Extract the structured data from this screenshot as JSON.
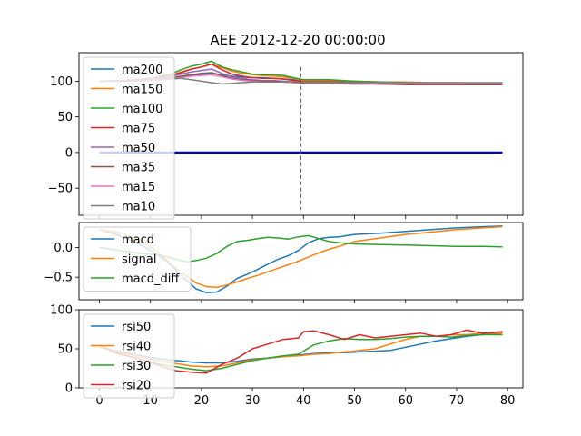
{
  "chart_data": [
    {
      "type": "line",
      "title": "AEE 2012-12-20 00:00:00",
      "xlim": [
        -4,
        83
      ],
      "ylim": [
        -88,
        140
      ],
      "yticks": [
        -50,
        0,
        50,
        100
      ],
      "xticks": [
        0,
        10,
        20,
        30,
        40,
        50,
        60,
        70,
        80
      ],
      "show_x_tick_labels": false,
      "legend": "top-left",
      "series": [
        {
          "name": "ma200",
          "color": "#1f77b4",
          "x": [
            0,
            5,
            10,
            14,
            16,
            18,
            20,
            22,
            24,
            26,
            28,
            30,
            32,
            34,
            36,
            38,
            40,
            45,
            50,
            55,
            60,
            65,
            70,
            75,
            79
          ],
          "y": [
            100,
            101,
            102,
            104,
            106,
            108,
            109,
            111,
            109,
            107,
            106,
            105,
            105,
            104,
            103,
            102,
            101,
            100,
            99,
            98,
            98,
            97,
            97,
            97,
            97
          ]
        },
        {
          "name": "ma150",
          "color": "#ff7f0e",
          "x": [
            0,
            5,
            10,
            14,
            16,
            18,
            20,
            22,
            24,
            26,
            28,
            30,
            32,
            34,
            36,
            38,
            40,
            45,
            50,
            55,
            60,
            65,
            70,
            75,
            79
          ],
          "y": [
            100,
            101,
            103,
            108,
            113,
            117,
            120,
            124,
            119,
            114,
            111,
            109,
            108,
            107,
            106,
            104,
            101,
            101,
            100,
            99,
            99,
            98,
            98,
            97,
            97
          ]
        },
        {
          "name": "ma100",
          "color": "#2ca02c",
          "x": [
            0,
            5,
            10,
            14,
            16,
            18,
            20,
            22,
            24,
            26,
            28,
            30,
            32,
            34,
            36,
            38,
            40,
            45,
            50,
            55,
            60,
            65,
            70,
            75,
            79
          ],
          "y": [
            100,
            101,
            104,
            110,
            116,
            121,
            124,
            128,
            120,
            116,
            113,
            110,
            109,
            109,
            108,
            105,
            102,
            102,
            100,
            99,
            98,
            97,
            97,
            97,
            97
          ]
        },
        {
          "name": "ma75",
          "color": "#d62728",
          "x": [
            0,
            5,
            10,
            14,
            16,
            18,
            20,
            22,
            24,
            26,
            28,
            30,
            32,
            34,
            36,
            38,
            40,
            45,
            50,
            55,
            60,
            65,
            70,
            75,
            79
          ],
          "y": [
            100,
            101,
            103,
            108,
            112,
            117,
            120,
            124,
            116,
            110,
            107,
            105,
            104,
            104,
            103,
            101,
            99,
            99,
            98,
            97,
            96,
            96,
            95,
            95,
            95
          ]
        },
        {
          "name": "ma50",
          "color": "#9467bd",
          "x": [
            0,
            5,
            10,
            14,
            16,
            18,
            20,
            22,
            24,
            26,
            28,
            30,
            32,
            34,
            36,
            38,
            40,
            45,
            50,
            55,
            60,
            65,
            70,
            75,
            79
          ],
          "y": [
            100,
            100,
            102,
            106,
            110,
            113,
            115,
            117,
            111,
            106,
            104,
            102,
            101,
            101,
            100,
            99,
            98,
            98,
            97,
            96,
            96,
            96,
            96,
            96,
            96
          ]
        },
        {
          "name": "ma35",
          "color": "#8c564b",
          "x": [
            0,
            5,
            10,
            14,
            16,
            18,
            20,
            22,
            24,
            26,
            28,
            30,
            32,
            34,
            36,
            38,
            40,
            45,
            50,
            55,
            60,
            65,
            70,
            75,
            79
          ],
          "y": [
            100,
            100,
            101,
            104,
            107,
            109,
            111,
            112,
            108,
            104,
            102,
            101,
            100,
            100,
            99,
            98,
            97,
            97,
            96,
            96,
            95,
            95,
            95,
            95,
            95
          ]
        },
        {
          "name": "ma15",
          "color": "#e377c2",
          "x": [
            0,
            5,
            10,
            14,
            16,
            18,
            20,
            22,
            24,
            26,
            28,
            30,
            32,
            34,
            36,
            38,
            40,
            45,
            50,
            55,
            60,
            65,
            70,
            75,
            79
          ],
          "y": [
            100,
            100,
            101,
            103,
            105,
            107,
            108,
            109,
            106,
            103,
            101,
            100,
            99,
            99,
            99,
            98,
            98,
            98,
            97,
            97,
            97,
            97,
            97,
            97,
            97
          ]
        },
        {
          "name": "ma10",
          "color": "#7f7f7f",
          "x": [
            0,
            5,
            10,
            14,
            16,
            18,
            20,
            22,
            24,
            26,
            28,
            30,
            32,
            34,
            36,
            38,
            40,
            45,
            50,
            55,
            60,
            65,
            70,
            75,
            79
          ],
          "y": [
            100,
            100,
            101,
            103,
            104,
            102,
            100,
            98,
            96,
            97,
            98,
            99,
            99,
            99,
            99,
            99,
            98,
            98,
            98,
            98,
            98,
            98,
            98,
            98,
            98
          ]
        },
        {
          "name": "",
          "color": "#0000cc",
          "x": [
            0,
            79
          ],
          "y": [
            0,
            0
          ]
        }
      ],
      "vline": {
        "x": 39.5,
        "color": "#d62728"
      }
    },
    {
      "type": "line",
      "xlim": [
        -4,
        83
      ],
      "ylim": [
        -0.88,
        0.42
      ],
      "yticks": [
        -0.5,
        0.0
      ],
      "ytick_labels": [
        "−0.5",
        "0.0"
      ],
      "show_x_tick_labels": false,
      "legend": "top-left",
      "series": [
        {
          "name": "macd",
          "color": "#1f77b4",
          "x": [
            0,
            4,
            8,
            11,
            13,
            15,
            17,
            19,
            21,
            23,
            25,
            27,
            29,
            31,
            33,
            35,
            37,
            39,
            41,
            43,
            45,
            47,
            50,
            55,
            60,
            65,
            70,
            75,
            79
          ],
          "y": [
            0.3,
            0.2,
            0.05,
            -0.1,
            -0.22,
            -0.38,
            -0.55,
            -0.7,
            -0.76,
            -0.75,
            -0.65,
            -0.52,
            -0.45,
            -0.37,
            -0.28,
            -0.2,
            -0.14,
            -0.05,
            0.08,
            0.15,
            0.17,
            0.18,
            0.22,
            0.24,
            0.27,
            0.3,
            0.33,
            0.35,
            0.36
          ]
        },
        {
          "name": "signal",
          "color": "#ff7f0e",
          "x": [
            0,
            4,
            8,
            11,
            13,
            15,
            17,
            19,
            21,
            23,
            25,
            27,
            29,
            31,
            33,
            35,
            37,
            39,
            41,
            43,
            45,
            47,
            50,
            55,
            60,
            65,
            70,
            75,
            79
          ],
          "y": [
            0.3,
            0.25,
            0.1,
            -0.05,
            -0.2,
            -0.35,
            -0.48,
            -0.6,
            -0.66,
            -0.67,
            -0.63,
            -0.58,
            -0.52,
            -0.47,
            -0.41,
            -0.35,
            -0.29,
            -0.23,
            -0.16,
            -0.09,
            -0.03,
            0.02,
            0.1,
            0.16,
            0.22,
            0.26,
            0.3,
            0.33,
            0.35
          ]
        },
        {
          "name": "macd_diff",
          "color": "#2ca02c",
          "x": [
            0,
            4,
            8,
            11,
            13,
            15,
            17,
            19,
            21,
            23,
            25,
            27,
            29,
            31,
            33,
            35,
            37,
            39,
            41,
            43,
            45,
            47,
            50,
            55,
            60,
            65,
            70,
            75,
            79
          ],
          "y": [
            0.0,
            -0.05,
            -0.1,
            -0.12,
            -0.15,
            -0.2,
            -0.24,
            -0.22,
            -0.18,
            -0.1,
            0.02,
            0.1,
            0.12,
            0.15,
            0.17,
            0.16,
            0.14,
            0.18,
            0.2,
            0.15,
            0.1,
            0.08,
            0.06,
            0.05,
            0.04,
            0.03,
            0.02,
            0.02,
            0.01
          ]
        }
      ]
    },
    {
      "type": "line",
      "xlim": [
        -4,
        83
      ],
      "ylim": [
        0,
        100
      ],
      "yticks": [
        0,
        50,
        100
      ],
      "xticks": [
        0,
        10,
        20,
        30,
        40,
        50,
        60,
        70,
        80
      ],
      "legend": "top-left",
      "series": [
        {
          "name": "rsi50",
          "color": "#1f77b4",
          "x": [
            0,
            3,
            6,
            9,
            12,
            15,
            18,
            21,
            24,
            27,
            30,
            33,
            36,
            39,
            42,
            45,
            48,
            51,
            54,
            57,
            60,
            63,
            66,
            69,
            72,
            75,
            79
          ],
          "y": [
            52,
            48,
            44,
            40,
            37,
            35,
            33,
            32,
            32,
            34,
            37,
            38,
            40,
            42,
            44,
            45,
            45,
            46,
            47,
            48,
            52,
            56,
            60,
            63,
            66,
            68,
            70
          ]
        },
        {
          "name": "rsi40",
          "color": "#ff7f0e",
          "x": [
            0,
            3,
            6,
            9,
            12,
            15,
            18,
            21,
            24,
            27,
            30,
            33,
            36,
            39,
            42,
            45,
            48,
            51,
            54,
            57,
            60,
            63,
            66,
            69,
            72,
            75,
            79
          ],
          "y": [
            52,
            47,
            42,
            38,
            34,
            31,
            28,
            27,
            28,
            32,
            36,
            38,
            40,
            41,
            43,
            44,
            46,
            48,
            50,
            56,
            62,
            66,
            66,
            68,
            68,
            70,
            70
          ]
        },
        {
          "name": "rsi30",
          "color": "#2ca02c",
          "x": [
            0,
            3,
            6,
            9,
            12,
            15,
            18,
            21,
            24,
            27,
            30,
            33,
            36,
            39,
            42,
            45,
            48,
            51,
            54,
            57,
            60,
            63,
            66,
            69,
            72,
            75,
            79
          ],
          "y": [
            54,
            46,
            40,
            35,
            30,
            27,
            24,
            22,
            25,
            30,
            35,
            38,
            41,
            43,
            55,
            60,
            63,
            62,
            62,
            63,
            65,
            66,
            66,
            65,
            67,
            68,
            68
          ]
        },
        {
          "name": "rsi20",
          "color": "#d62728",
          "x": [
            0,
            3,
            6,
            9,
            12,
            15,
            18,
            21,
            24,
            27,
            30,
            33,
            36,
            39,
            40,
            42,
            45,
            48,
            51,
            54,
            57,
            60,
            63,
            66,
            69,
            72,
            75,
            79
          ],
          "y": [
            55,
            45,
            40,
            35,
            28,
            22,
            20,
            19,
            30,
            38,
            50,
            56,
            62,
            64,
            72,
            73,
            68,
            62,
            68,
            64,
            66,
            68,
            70,
            66,
            68,
            74,
            70,
            72
          ]
        }
      ],
      "xlabel": "",
      "ylabel": ""
    }
  ]
}
